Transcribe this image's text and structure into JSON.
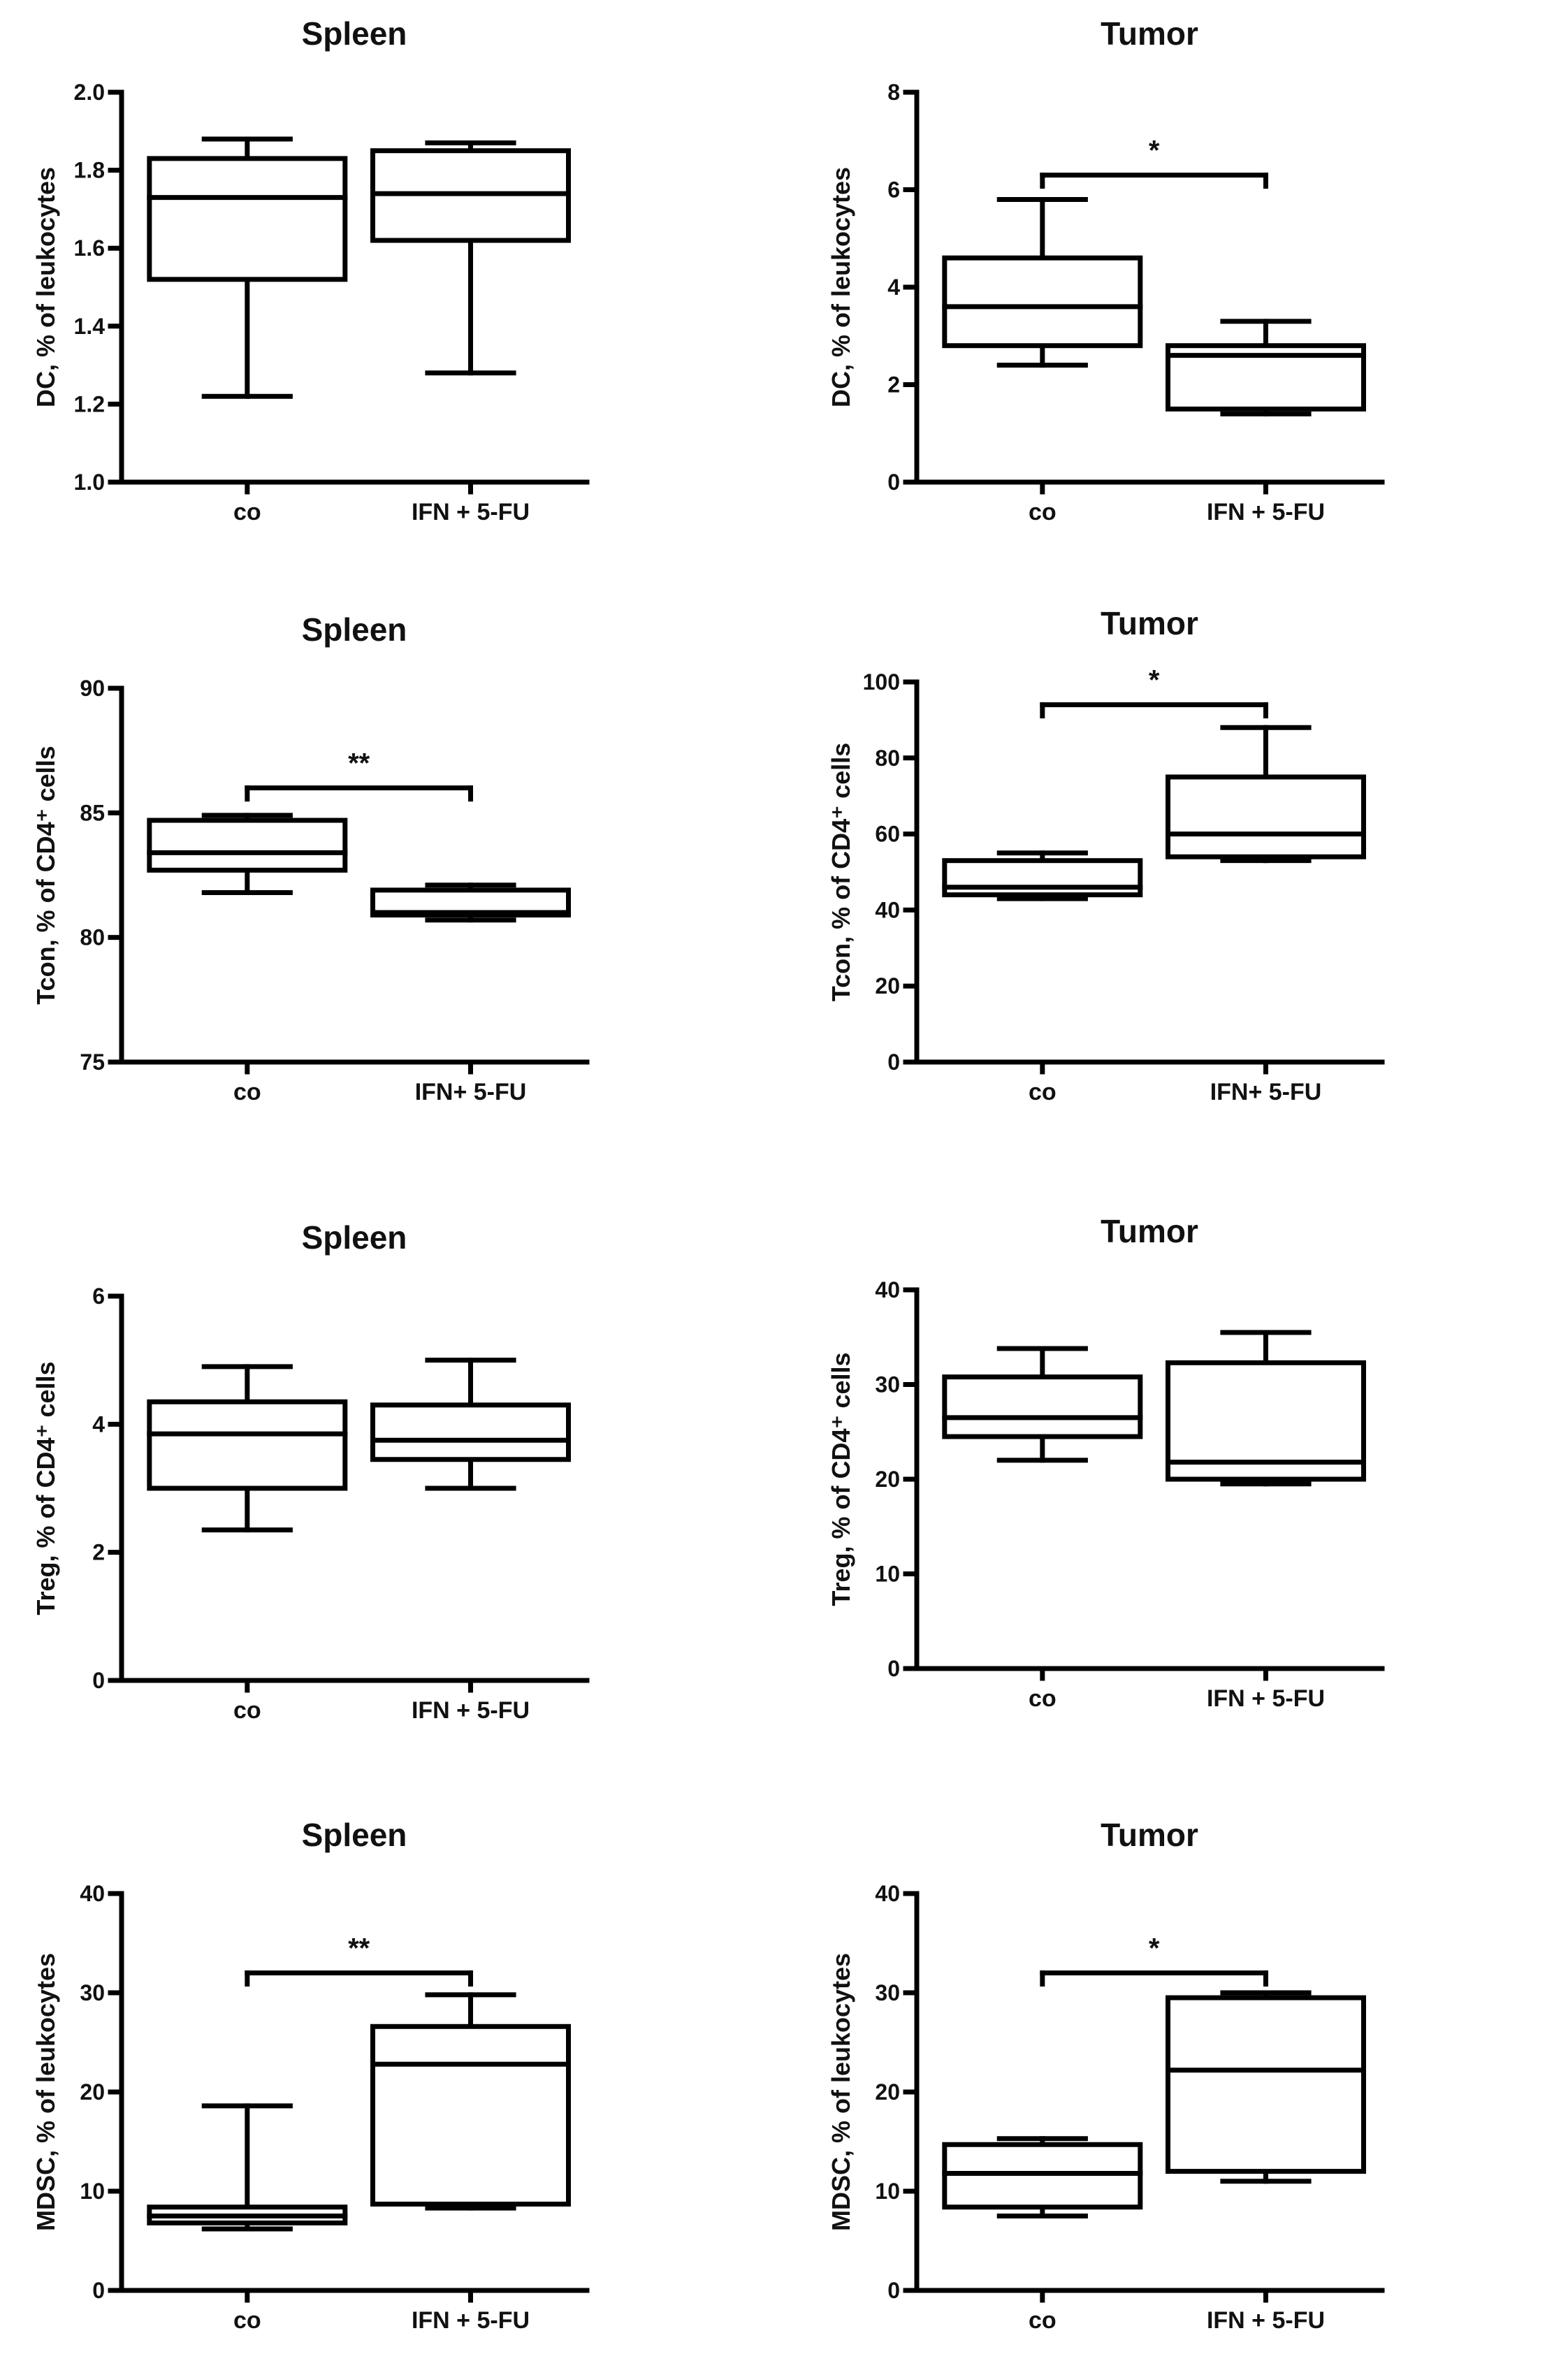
{
  "chart_data": [
    {
      "type": "box",
      "title": "Spleen",
      "ylabel": "DC, % of leukocytes",
      "ylim": [
        1.0,
        2.0
      ],
      "ticks": [
        1.0,
        1.2,
        1.4,
        1.6,
        1.8,
        2.0
      ],
      "tick_labels": [
        "1.0",
        "1.2",
        "1.4",
        "1.6",
        "1.8",
        "2.0"
      ],
      "categories": [
        "co",
        "IFN + 5-FU"
      ],
      "boxes": [
        {
          "min": 1.22,
          "q1": 1.52,
          "median": 1.73,
          "q3": 1.83,
          "max": 1.88
        },
        {
          "min": 1.28,
          "q1": 1.62,
          "median": 1.74,
          "q3": 1.85,
          "max": 1.87
        }
      ],
      "significance": null
    },
    {
      "type": "box",
      "title": "Tumor",
      "ylabel": "DC, % of leukocytes",
      "ylim": [
        0,
        8
      ],
      "ticks": [
        0,
        2,
        4,
        6,
        8
      ],
      "tick_labels": [
        "0",
        "2",
        "4",
        "6",
        "8"
      ],
      "categories": [
        "co",
        "IFN + 5-FU"
      ],
      "boxes": [
        {
          "min": 2.4,
          "q1": 2.8,
          "median": 3.6,
          "q3": 4.6,
          "max": 5.8
        },
        {
          "min": 1.4,
          "q1": 1.5,
          "median": 2.6,
          "q3": 2.8,
          "max": 3.3
        }
      ],
      "significance": {
        "label": "*",
        "y": 6.3
      }
    },
    {
      "type": "box",
      "title": "Spleen",
      "ylabel": "Tcon, % of CD4⁺ cells",
      "ylim": [
        75,
        90
      ],
      "ticks": [
        75,
        80,
        85,
        90
      ],
      "tick_labels": [
        "75",
        "80",
        "85",
        "90"
      ],
      "categories": [
        "co",
        "IFN+ 5-FU"
      ],
      "boxes": [
        {
          "min": 81.8,
          "q1": 82.7,
          "median": 83.4,
          "q3": 84.7,
          "max": 84.9
        },
        {
          "min": 80.7,
          "q1": 80.9,
          "median": 81.0,
          "q3": 81.9,
          "max": 82.1
        }
      ],
      "significance": {
        "label": "**",
        "y": 86.0
      }
    },
    {
      "type": "box",
      "title": "Tumor",
      "ylabel": "Tcon, % of CD4⁺ cells",
      "ylim": [
        0,
        100
      ],
      "ticks": [
        0,
        20,
        40,
        60,
        80,
        100
      ],
      "tick_labels": [
        "0",
        "20",
        "40",
        "60",
        "80",
        "100"
      ],
      "categories": [
        "co",
        "IFN+ 5-FU"
      ],
      "boxes": [
        {
          "min": 43,
          "q1": 44,
          "median": 46,
          "q3": 53,
          "max": 55
        },
        {
          "min": 53,
          "q1": 54,
          "median": 60,
          "q3": 75,
          "max": 88
        }
      ],
      "significance": {
        "label": "*",
        "y": 94
      }
    },
    {
      "type": "box",
      "title": "Spleen",
      "ylabel": "Treg, % of CD4⁺ cells",
      "ylim": [
        0,
        6
      ],
      "ticks": [
        0,
        2,
        4,
        6
      ],
      "tick_labels": [
        "0",
        "2",
        "4",
        "6"
      ],
      "categories": [
        "co",
        "IFN + 5-FU"
      ],
      "boxes": [
        {
          "min": 2.35,
          "q1": 3.0,
          "median": 3.85,
          "q3": 4.35,
          "max": 4.9
        },
        {
          "min": 3.0,
          "q1": 3.45,
          "median": 3.75,
          "q3": 4.3,
          "max": 5.0
        }
      ],
      "significance": null
    },
    {
      "type": "box",
      "title": "Tumor",
      "ylabel": "Treg, % of CD4⁺ cells",
      "ylim": [
        0,
        40
      ],
      "ticks": [
        0,
        10,
        20,
        30,
        40
      ],
      "tick_labels": [
        "0",
        "10",
        "20",
        "30",
        "40"
      ],
      "categories": [
        "co",
        "IFN + 5-FU"
      ],
      "boxes": [
        {
          "min": 22,
          "q1": 24.5,
          "median": 26.5,
          "q3": 30.8,
          "max": 33.8
        },
        {
          "min": 19.5,
          "q1": 20,
          "median": 21.8,
          "q3": 32.3,
          "max": 35.5
        }
      ],
      "significance": null
    },
    {
      "type": "box",
      "title": "Spleen",
      "ylabel": "MDSC, % of leukocytes",
      "ylim": [
        0,
        40
      ],
      "ticks": [
        0,
        10,
        20,
        30,
        40
      ],
      "tick_labels": [
        "0",
        "10",
        "20",
        "30",
        "40"
      ],
      "categories": [
        "co",
        "IFN + 5-FU"
      ],
      "boxes": [
        {
          "min": 6.2,
          "q1": 6.8,
          "median": 7.5,
          "q3": 8.4,
          "max": 18.6
        },
        {
          "min": 8.3,
          "q1": 8.7,
          "median": 22.8,
          "q3": 26.6,
          "max": 29.8
        }
      ],
      "significance": {
        "label": "**",
        "y": 32
      }
    },
    {
      "type": "box",
      "title": "Tumor",
      "ylabel": "MDSC, % of leukocytes",
      "ylim": [
        0,
        40
      ],
      "ticks": [
        0,
        10,
        20,
        30,
        40
      ],
      "tick_labels": [
        "0",
        "10",
        "20",
        "30",
        "40"
      ],
      "categories": [
        "co",
        "IFN + 5-FU"
      ],
      "boxes": [
        {
          "min": 7.5,
          "q1": 8.4,
          "median": 11.8,
          "q3": 14.7,
          "max": 15.3
        },
        {
          "min": 11,
          "q1": 12,
          "median": 22.2,
          "q3": 29.5,
          "max": 30
        }
      ],
      "significance": {
        "label": "*",
        "y": 32
      }
    }
  ]
}
